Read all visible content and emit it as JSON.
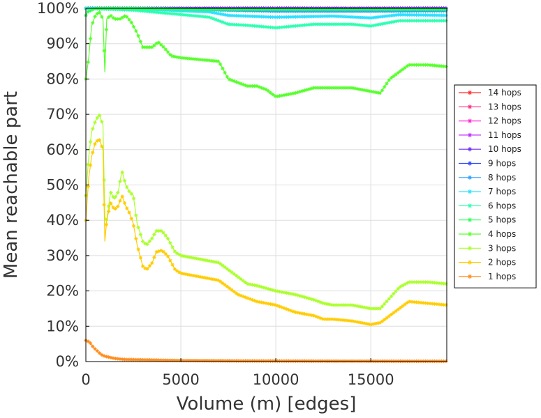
{
  "chart_data": {
    "type": "line",
    "title": "",
    "xlabel": "Volume (m) [edges]",
    "ylabel": "Mean reachable part",
    "xlim": [
      0,
      19000
    ],
    "ylim": [
      0,
      100
    ],
    "x_ticks": [
      0,
      5000,
      10000,
      15000
    ],
    "x_tick_labels": [
      "0",
      "5000",
      "10000",
      "15000"
    ],
    "y_ticks": [
      0,
      10,
      20,
      30,
      40,
      50,
      60,
      70,
      80,
      90,
      100
    ],
    "y_tick_labels": [
      "0%",
      "10%",
      "20%",
      "30%",
      "40%",
      "50%",
      "60%",
      "70%",
      "80%",
      "90%",
      "100%"
    ],
    "grid": true,
    "legend_position": "right",
    "marker": "asterisk",
    "series": [
      {
        "name": "14 hops",
        "color": "#ff2a2a",
        "points": [
          [
            0,
            100
          ],
          [
            19000,
            100
          ]
        ]
      },
      {
        "name": "13 hops",
        "color": "#ff2a7f",
        "points": [
          [
            0,
            100
          ],
          [
            19000,
            100
          ]
        ]
      },
      {
        "name": "12 hops",
        "color": "#ff2ad4",
        "points": [
          [
            0,
            100
          ],
          [
            19000,
            100
          ]
        ]
      },
      {
        "name": "11 hops",
        "color": "#c02aff",
        "points": [
          [
            0,
            100
          ],
          [
            19000,
            100
          ]
        ]
      },
      {
        "name": "10 hops",
        "color": "#6a2aff",
        "points": [
          [
            0,
            100
          ],
          [
            19000,
            100
          ]
        ]
      },
      {
        "name": "9 hops",
        "color": "#2a45ff",
        "points": [
          [
            0,
            100
          ],
          [
            2500,
            100
          ],
          [
            7000,
            99.8
          ],
          [
            19000,
            99.8
          ]
        ]
      },
      {
        "name": "8 hops",
        "color": "#2a9fff",
        "points": [
          [
            0,
            100
          ],
          [
            2500,
            100
          ],
          [
            7000,
            99.5
          ],
          [
            10000,
            99.2
          ],
          [
            15000,
            99.2
          ],
          [
            19000,
            99.3
          ]
        ]
      },
      {
        "name": "7 hops",
        "color": "#2ae0ff",
        "points": [
          [
            0,
            100
          ],
          [
            2500,
            99.8
          ],
          [
            6500,
            99
          ],
          [
            7500,
            98
          ],
          [
            10000,
            97.5
          ],
          [
            13000,
            97.8
          ],
          [
            15000,
            97.3
          ],
          [
            16500,
            98.2
          ],
          [
            19000,
            98
          ]
        ]
      },
      {
        "name": "6 hops",
        "color": "#2affb0",
        "points": [
          [
            0,
            100
          ],
          [
            2500,
            99.5
          ],
          [
            6500,
            97.5
          ],
          [
            7000,
            96.5
          ],
          [
            7500,
            95.5
          ],
          [
            8500,
            95.2
          ],
          [
            10000,
            94.5
          ],
          [
            12000,
            95.5
          ],
          [
            14000,
            95.5
          ],
          [
            15000,
            95
          ],
          [
            16500,
            96.5
          ],
          [
            19000,
            96.5
          ]
        ]
      },
      {
        "name": "5 hops",
        "color": "#2aff55",
        "points": [
          [
            0,
            98
          ],
          [
            100,
            99
          ],
          [
            500,
            100
          ],
          [
            2500,
            100
          ],
          [
            6000,
            99.7
          ],
          [
            19000,
            99.7
          ]
        ]
      },
      {
        "name": "4 hops",
        "color": "#55ff2a",
        "points": [
          [
            0,
            80
          ],
          [
            150,
            86
          ],
          [
            300,
            95
          ],
          [
            500,
            98
          ],
          [
            700,
            99
          ],
          [
            900,
            97
          ],
          [
            1000,
            82
          ],
          [
            1100,
            97
          ],
          [
            1300,
            98
          ],
          [
            1500,
            97
          ],
          [
            1800,
            97
          ],
          [
            2100,
            98
          ],
          [
            2400,
            96
          ],
          [
            2700,
            93
          ],
          [
            3000,
            89
          ],
          [
            3500,
            89
          ],
          [
            3800,
            90.5
          ],
          [
            4100,
            89
          ],
          [
            4500,
            86.5
          ],
          [
            5000,
            86
          ],
          [
            6000,
            85.5
          ],
          [
            7000,
            85
          ],
          [
            7500,
            80
          ],
          [
            8000,
            79
          ],
          [
            8500,
            78
          ],
          [
            9000,
            78
          ],
          [
            9500,
            77
          ],
          [
            10000,
            75
          ],
          [
            11000,
            76
          ],
          [
            12000,
            77.5
          ],
          [
            13000,
            77.5
          ],
          [
            14000,
            77.5
          ],
          [
            15000,
            76.5
          ],
          [
            15500,
            76
          ],
          [
            16000,
            80
          ],
          [
            16500,
            82
          ],
          [
            17000,
            84
          ],
          [
            18000,
            84
          ],
          [
            19000,
            83.5
          ]
        ]
      },
      {
        "name": "3 hops",
        "color": "#aaff2a",
        "points": [
          [
            0,
            47
          ],
          [
            150,
            58
          ],
          [
            300,
            65
          ],
          [
            500,
            68
          ],
          [
            700,
            70
          ],
          [
            900,
            67
          ],
          [
            1000,
            41
          ],
          [
            1100,
            40
          ],
          [
            1300,
            48
          ],
          [
            1500,
            46
          ],
          [
            1700,
            48
          ],
          [
            1900,
            54
          ],
          [
            2100,
            50
          ],
          [
            2300,
            48
          ],
          [
            2500,
            47
          ],
          [
            2700,
            39
          ],
          [
            3000,
            34
          ],
          [
            3200,
            33
          ],
          [
            3500,
            35
          ],
          [
            3700,
            37
          ],
          [
            4000,
            37
          ],
          [
            4300,
            35
          ],
          [
            4700,
            31
          ],
          [
            5000,
            30
          ],
          [
            6000,
            29
          ],
          [
            7000,
            28
          ],
          [
            7500,
            26
          ],
          [
            8000,
            24
          ],
          [
            8500,
            22
          ],
          [
            9000,
            21.5
          ],
          [
            10000,
            20
          ],
          [
            11000,
            19
          ],
          [
            12000,
            17.5
          ],
          [
            12500,
            16.5
          ],
          [
            13000,
            16
          ],
          [
            14000,
            16
          ],
          [
            15000,
            15
          ],
          [
            15500,
            15
          ],
          [
            16000,
            18
          ],
          [
            16500,
            21
          ],
          [
            17000,
            22.5
          ],
          [
            18000,
            22.5
          ],
          [
            19000,
            22
          ]
        ]
      },
      {
        "name": "2 hops",
        "color": "#ffcc00",
        "points": [
          [
            0,
            40
          ],
          [
            150,
            52
          ],
          [
            300,
            58
          ],
          [
            500,
            62
          ],
          [
            700,
            63
          ],
          [
            900,
            60
          ],
          [
            1000,
            34
          ],
          [
            1100,
            40
          ],
          [
            1300,
            45
          ],
          [
            1500,
            43
          ],
          [
            1700,
            44
          ],
          [
            1900,
            47
          ],
          [
            2100,
            44
          ],
          [
            2300,
            42
          ],
          [
            2500,
            39
          ],
          [
            2700,
            33
          ],
          [
            3000,
            27
          ],
          [
            3200,
            26
          ],
          [
            3500,
            28
          ],
          [
            3700,
            31
          ],
          [
            4000,
            31.5
          ],
          [
            4300,
            30
          ],
          [
            4700,
            26
          ],
          [
            5000,
            25
          ],
          [
            6000,
            24
          ],
          [
            7000,
            23
          ],
          [
            7500,
            21
          ],
          [
            8000,
            19
          ],
          [
            8500,
            18
          ],
          [
            9000,
            17
          ],
          [
            10000,
            16
          ],
          [
            11000,
            14
          ],
          [
            12000,
            13
          ],
          [
            12500,
            12
          ],
          [
            13000,
            12
          ],
          [
            14000,
            11.5
          ],
          [
            15000,
            10.5
          ],
          [
            15500,
            11
          ],
          [
            16000,
            13
          ],
          [
            16500,
            15
          ],
          [
            17000,
            17
          ],
          [
            18000,
            16.5
          ],
          [
            19000,
            16
          ]
        ]
      },
      {
        "name": "1 hops",
        "color": "#ff8c1a",
        "points": [
          [
            0,
            6
          ],
          [
            200,
            5.5
          ],
          [
            400,
            4
          ],
          [
            600,
            3
          ],
          [
            800,
            2
          ],
          [
            1000,
            1.5
          ],
          [
            1500,
            0.9
          ],
          [
            2000,
            0.6
          ],
          [
            3000,
            0.5
          ],
          [
            5000,
            0.3
          ],
          [
            8000,
            0.2
          ],
          [
            12000,
            0.15
          ],
          [
            19000,
            0.1
          ]
        ]
      }
    ]
  }
}
